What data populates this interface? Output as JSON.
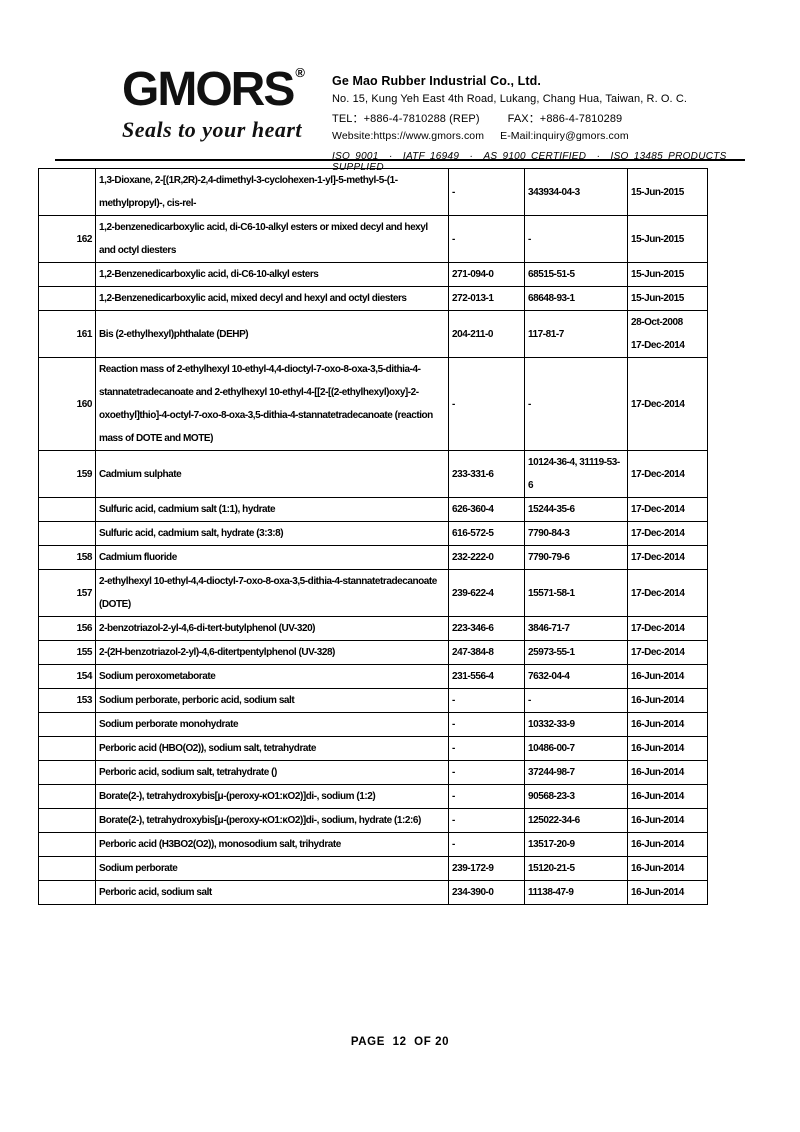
{
  "header": {
    "logo_text": "GMORS",
    "logo_reg": "®",
    "tagline": "Seals to your heart",
    "company_name": "Ge Mao Rubber Industrial Co., Ltd.",
    "address": "No. 15, Kung Yeh East 4th Road, Lukang, Chang Hua, Taiwan, R. O. C.",
    "tel": "TEL：+886-4-7810288 (REP)",
    "fax": "FAX：+886-4-7810289",
    "website": "Website:https://www.gmors.com",
    "email": "E-Mail:inquiry@gmors.com",
    "certifications": "ISO 9001　·　IATF 16949　·　AS 9100 CERTIFIED　·　ISO 13485 PRODUCTS SUPPLIED"
  },
  "table": {
    "rows": [
      {
        "no": "",
        "name": "1,3-Dioxane, 2-[(1R,2R)-2,4-dimethyl-3-cyclohexen-1-yl]-5-methyl-5-(1-methylpropyl)-, cis-rel-",
        "ec": "-",
        "cas": "343934-04-3",
        "dates": [
          "15-Jun-2015"
        ]
      },
      {
        "no": "162",
        "name": "1,2-benzenedicarboxylic acid, di-C6-10-alkyl esters or mixed decyl and hexyl and octyl diesters",
        "ec": "-",
        "cas": "-",
        "dates": [
          "15-Jun-2015"
        ]
      },
      {
        "no": "",
        "name": "1,2-Benzenedicarboxylic acid, di-C6-10-alkyl esters",
        "ec": "271-094-0",
        "cas": "68515-51-5",
        "dates": [
          "15-Jun-2015"
        ]
      },
      {
        "no": "",
        "name": "1,2-Benzenedicarboxylic acid, mixed decyl and hexyl and octyl diesters",
        "ec": "272-013-1",
        "cas": "68648-93-1",
        "dates": [
          "15-Jun-2015"
        ]
      },
      {
        "no": "161",
        "name": "Bis (2-ethylhexyl)phthalate (DEHP)",
        "ec": "204-211-0",
        "cas": "117-81-7",
        "dates": [
          "28-Oct-2008",
          "17-Dec-2014"
        ]
      },
      {
        "no": "160",
        "name": "Reaction mass of 2-ethylhexyl 10-ethyl-4,4-dioctyl-7-oxo-8-oxa-3,5-dithia-4-stannatetradecanoate and 2-ethylhexyl 10-ethyl-4-[[2-[(2-ethylhexyl)oxy]-2-oxoethyl]thio]-4-octyl-7-oxo-8-oxa-3,5-dithia-4-stannatetradecanoate (reaction mass of DOTE and MOTE)",
        "ec": "-",
        "cas": "-",
        "dates": [
          "17-Dec-2014"
        ]
      },
      {
        "no": "159",
        "name": "Cadmium sulphate",
        "ec": "233-331-6",
        "cas": "10124-36-4, 31119-53-6",
        "dates": [
          "17-Dec-2014"
        ]
      },
      {
        "no": "",
        "name": "Sulfuric acid, cadmium salt (1:1), hydrate",
        "ec": "626-360-4",
        "cas": "15244-35-6",
        "dates": [
          "17-Dec-2014"
        ]
      },
      {
        "no": "",
        "name": "Sulfuric acid, cadmium salt, hydrate (3:3:8)",
        "ec": "616-572-5",
        "cas": "7790-84-3",
        "dates": [
          "17-Dec-2014"
        ]
      },
      {
        "no": "158",
        "name": "Cadmium fluoride",
        "ec": "232-222-0",
        "cas": "7790-79-6",
        "dates": [
          "17-Dec-2014"
        ]
      },
      {
        "no": "157",
        "name": "2-ethylhexyl 10-ethyl-4,4-dioctyl-7-oxo-8-oxa-3,5-dithia-4-stannatetradecanoate (DOTE)",
        "ec": "239-622-4",
        "cas": "15571-58-1",
        "dates": [
          "17-Dec-2014"
        ]
      },
      {
        "no": "156",
        "name": "2-benzotriazol-2-yl-4,6-di-tert-butylphenol (UV-320)",
        "ec": "223-346-6",
        "cas": "3846-71-7",
        "dates": [
          "17-Dec-2014"
        ]
      },
      {
        "no": "155",
        "name": "2-(2H-benzotriazol-2-yl)-4,6-ditertpentylphenol (UV-328)",
        "ec": "247-384-8",
        "cas": "25973-55-1",
        "dates": [
          "17-Dec-2014"
        ]
      },
      {
        "no": "154",
        "name": "Sodium peroxometaborate",
        "ec": "231-556-4",
        "cas": "7632-04-4",
        "dates": [
          "16-Jun-2014"
        ]
      },
      {
        "no": "153",
        "name": "Sodium perborate, perboric acid, sodium salt",
        "ec": "-",
        "cas": "-",
        "dates": [
          "16-Jun-2014"
        ]
      },
      {
        "no": "",
        "name": "Sodium perborate monohydrate",
        "ec": "-",
        "cas": "10332-33-9",
        "dates": [
          "16-Jun-2014"
        ]
      },
      {
        "no": "",
        "name": "Perboric acid (HBO(O2)), sodium salt, tetrahydrate",
        "ec": "-",
        "cas": "10486-00-7",
        "dates": [
          "16-Jun-2014"
        ]
      },
      {
        "no": "",
        "name": "Perboric acid, sodium salt, tetrahydrate ()",
        "ec": "-",
        "cas": "37244-98-7",
        "dates": [
          "16-Jun-2014"
        ]
      },
      {
        "no": "",
        "name": "Borate(2-), tetrahydroxybis[μ-(peroxy-κO1:κO2)]di-, sodium (1:2)",
        "ec": "-",
        "cas": "90568-23-3",
        "dates": [
          "16-Jun-2014"
        ]
      },
      {
        "no": "",
        "name": "Borate(2-), tetrahydroxybis[μ-(peroxy-κO1:κO2)]di-, sodium, hydrate (1:2:6)",
        "ec": "-",
        "cas": "125022-34-6",
        "dates": [
          "16-Jun-2014"
        ]
      },
      {
        "no": "",
        "name": "Perboric acid (H3BO2(O2)), monosodium salt, trihydrate",
        "ec": "-",
        "cas": "13517-20-9",
        "dates": [
          "16-Jun-2014"
        ]
      },
      {
        "no": "",
        "name": "Sodium perborate",
        "ec": "239-172-9",
        "cas": "15120-21-5",
        "dates": [
          "16-Jun-2014"
        ]
      },
      {
        "no": "",
        "name": "Perboric acid, sodium salt",
        "ec": "234-390-0",
        "cas": "11138-47-9",
        "dates": [
          "16-Jun-2014"
        ]
      }
    ]
  },
  "footer": {
    "page_label": "PAGE  12  OF 20"
  }
}
